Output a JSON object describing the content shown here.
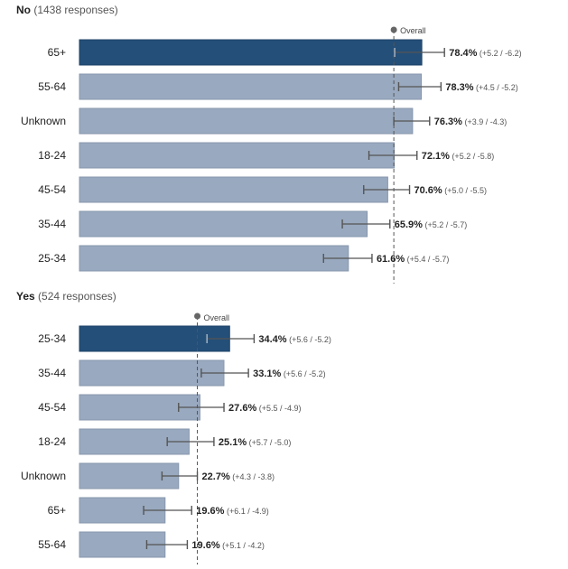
{
  "chart_data": [
    {
      "type": "bar",
      "orientation": "horizontal",
      "title_bold": "No",
      "title_rest": "(1438 responses)",
      "overall_label": "Overall",
      "overall_value": 72.0,
      "xlim": [
        0,
        90
      ],
      "highlight_index": 0,
      "categories": [
        "65+",
        "55-64",
        "Unknown",
        "18-24",
        "45-54",
        "35-44",
        "25-34"
      ],
      "values": [
        78.4,
        78.3,
        76.3,
        72.1,
        70.6,
        65.9,
        61.6
      ],
      "value_labels": [
        "78.4%",
        "78.3%",
        "76.3%",
        "72.1%",
        "70.6%",
        "65.9%",
        "61.6%"
      ],
      "error_plus": [
        5.2,
        4.5,
        3.9,
        5.2,
        5.0,
        5.2,
        5.4
      ],
      "error_minus": [
        6.2,
        5.2,
        4.3,
        5.8,
        5.5,
        5.7,
        5.7
      ],
      "error_labels": [
        "(+5.2 / -6.2)",
        "(+4.5 / -5.2)",
        "(+3.9 / -4.3)",
        "(+5.2 / -5.8)",
        "(+5.0 / -5.5)",
        "(+5.2 / -5.7)",
        "(+5.4 / -5.7)"
      ]
    },
    {
      "type": "bar",
      "orientation": "horizontal",
      "title_bold": "Yes",
      "title_rest": "(524 responses)",
      "overall_label": "Overall",
      "overall_value": 27.0,
      "xlim": [
        0,
        90
      ],
      "highlight_index": 0,
      "categories": [
        "25-34",
        "35-44",
        "45-54",
        "18-24",
        "Unknown",
        "65+",
        "55-64"
      ],
      "values": [
        34.4,
        33.1,
        27.6,
        25.1,
        22.7,
        19.6,
        19.6
      ],
      "value_labels": [
        "34.4%",
        "33.1%",
        "27.6%",
        "25.1%",
        "22.7%",
        "19.6%",
        "19.6%"
      ],
      "error_plus": [
        5.6,
        5.6,
        5.5,
        5.7,
        4.3,
        6.1,
        5.1
      ],
      "error_minus": [
        5.2,
        5.2,
        4.9,
        5.0,
        3.8,
        4.9,
        4.2
      ],
      "error_labels": [
        "(+5.6 / -5.2)",
        "(+5.6 / -5.2)",
        "(+5.5 / -4.9)",
        "(+5.7 / -5.0)",
        "(+4.3 / -3.8)",
        "(+6.1 / -4.9)",
        "(+5.1 / -4.2)"
      ]
    }
  ],
  "colors": {
    "bar": "#99a9bf",
    "bar_border": "#8797ad",
    "bar_highlight": "#244f79",
    "bar_highlight_dark": "#1d4167",
    "error": "#555555",
    "overall_line": "#555555",
    "text": "#222222",
    "subtext": "#555555"
  }
}
